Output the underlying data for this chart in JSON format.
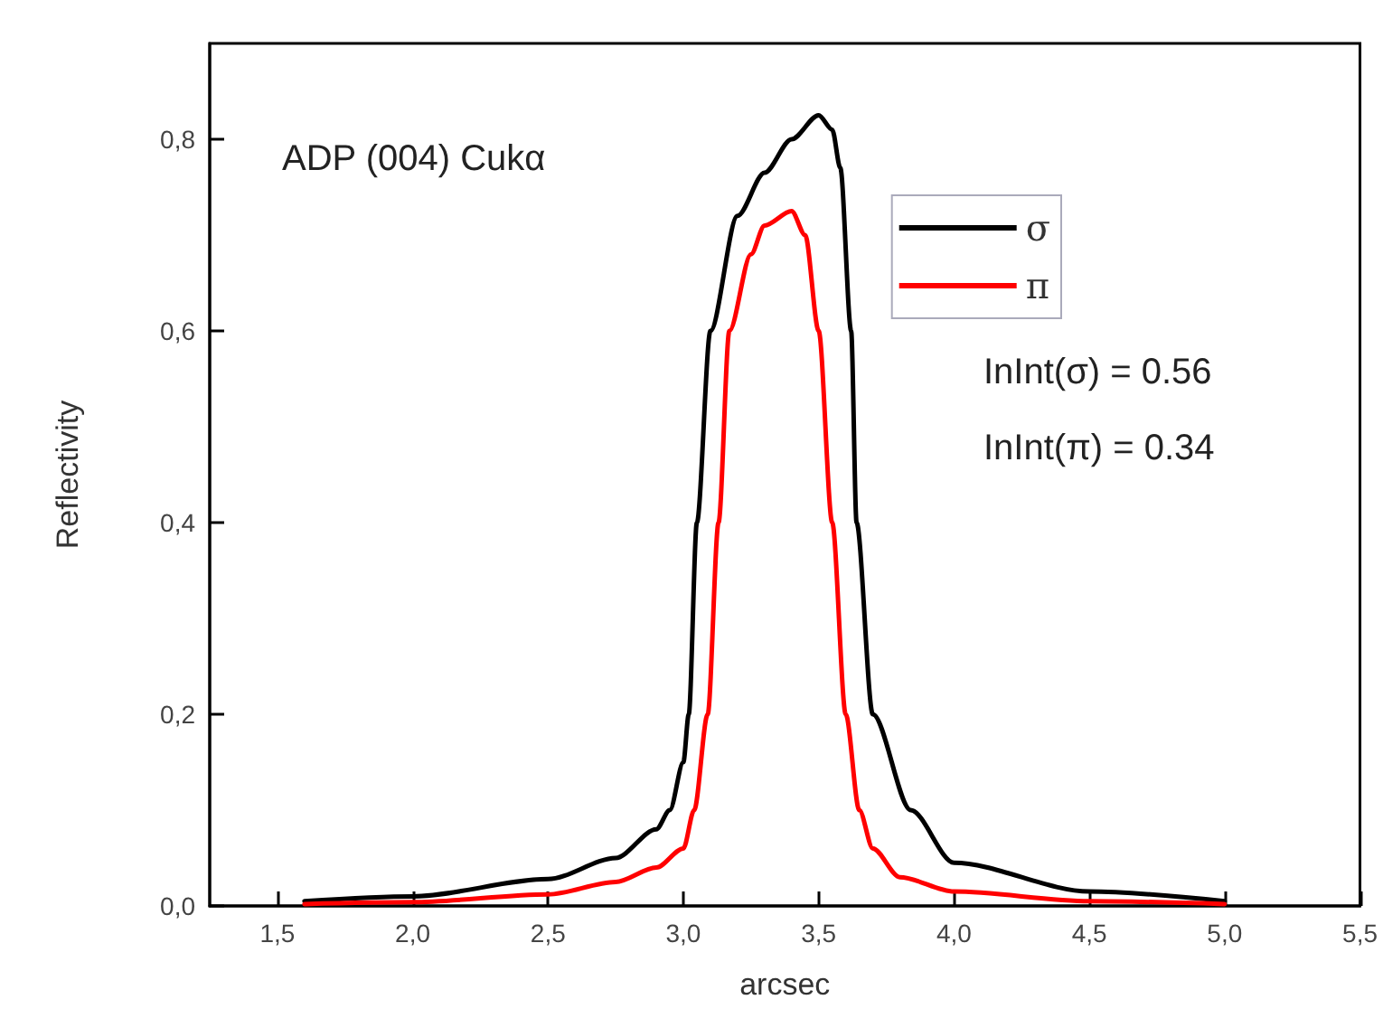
{
  "chart_data": {
    "type": "line",
    "xlabel": "arcsec",
    "ylabel": "Reflectivity",
    "annotations": [
      "ADP (004) Cukα",
      "InInt(σ) = 0.56",
      "InInt(π) = 0.34"
    ],
    "xlim": [
      1.25,
      5.5
    ],
    "ylim": [
      0,
      0.9
    ],
    "xticks": [
      {
        "value": 1.5,
        "label": "1,5"
      },
      {
        "value": 2,
        "label": "2,0"
      },
      {
        "value": 2.5,
        "label": "2,5"
      },
      {
        "value": 3,
        "label": "3,0"
      },
      {
        "value": 3.5,
        "label": "3,5"
      },
      {
        "value": 4,
        "label": "4,0"
      },
      {
        "value": 4.5,
        "label": "4,5"
      },
      {
        "value": 5,
        "label": "5,0"
      },
      {
        "value": 5.5,
        "label": "5,5"
      }
    ],
    "yticks": [
      {
        "value": 0,
        "label": "0,0"
      },
      {
        "value": 0.2,
        "label": "0,2"
      },
      {
        "value": 0.4,
        "label": "0,4"
      },
      {
        "value": 0.6,
        "label": "0,6"
      },
      {
        "value": 0.8,
        "label": "0,8"
      }
    ],
    "grid": false,
    "legend": "top right",
    "marker": "none",
    "line_style": "solid",
    "series": [
      {
        "name": "σ",
        "color": "#000000",
        "x": [
          1.6,
          2.0,
          2.5,
          2.75,
          2.9,
          2.95,
          3.0,
          3.02,
          3.05,
          3.1,
          3.2,
          3.3,
          3.4,
          3.5,
          3.55,
          3.58,
          3.62,
          3.64,
          3.7,
          3.84,
          4.0,
          4.5,
          5.0
        ],
        "values": [
          0.005,
          0.01,
          0.028,
          0.05,
          0.08,
          0.1,
          0.15,
          0.2,
          0.4,
          0.6,
          0.72,
          0.765,
          0.8,
          0.825,
          0.81,
          0.77,
          0.6,
          0.4,
          0.2,
          0.1,
          0.045,
          0.015,
          0.005
        ]
      },
      {
        "name": "π",
        "color": "#ff0000",
        "x": [
          1.6,
          2.0,
          2.5,
          2.75,
          2.9,
          3.0,
          3.04,
          3.09,
          3.13,
          3.17,
          3.25,
          3.3,
          3.4,
          3.45,
          3.5,
          3.55,
          3.6,
          3.65,
          3.7,
          3.8,
          4.0,
          4.5,
          5.0
        ],
        "values": [
          0.002,
          0.004,
          0.012,
          0.025,
          0.04,
          0.06,
          0.1,
          0.2,
          0.4,
          0.6,
          0.68,
          0.71,
          0.725,
          0.7,
          0.6,
          0.4,
          0.2,
          0.1,
          0.06,
          0.03,
          0.015,
          0.005,
          0.002
        ]
      }
    ]
  }
}
